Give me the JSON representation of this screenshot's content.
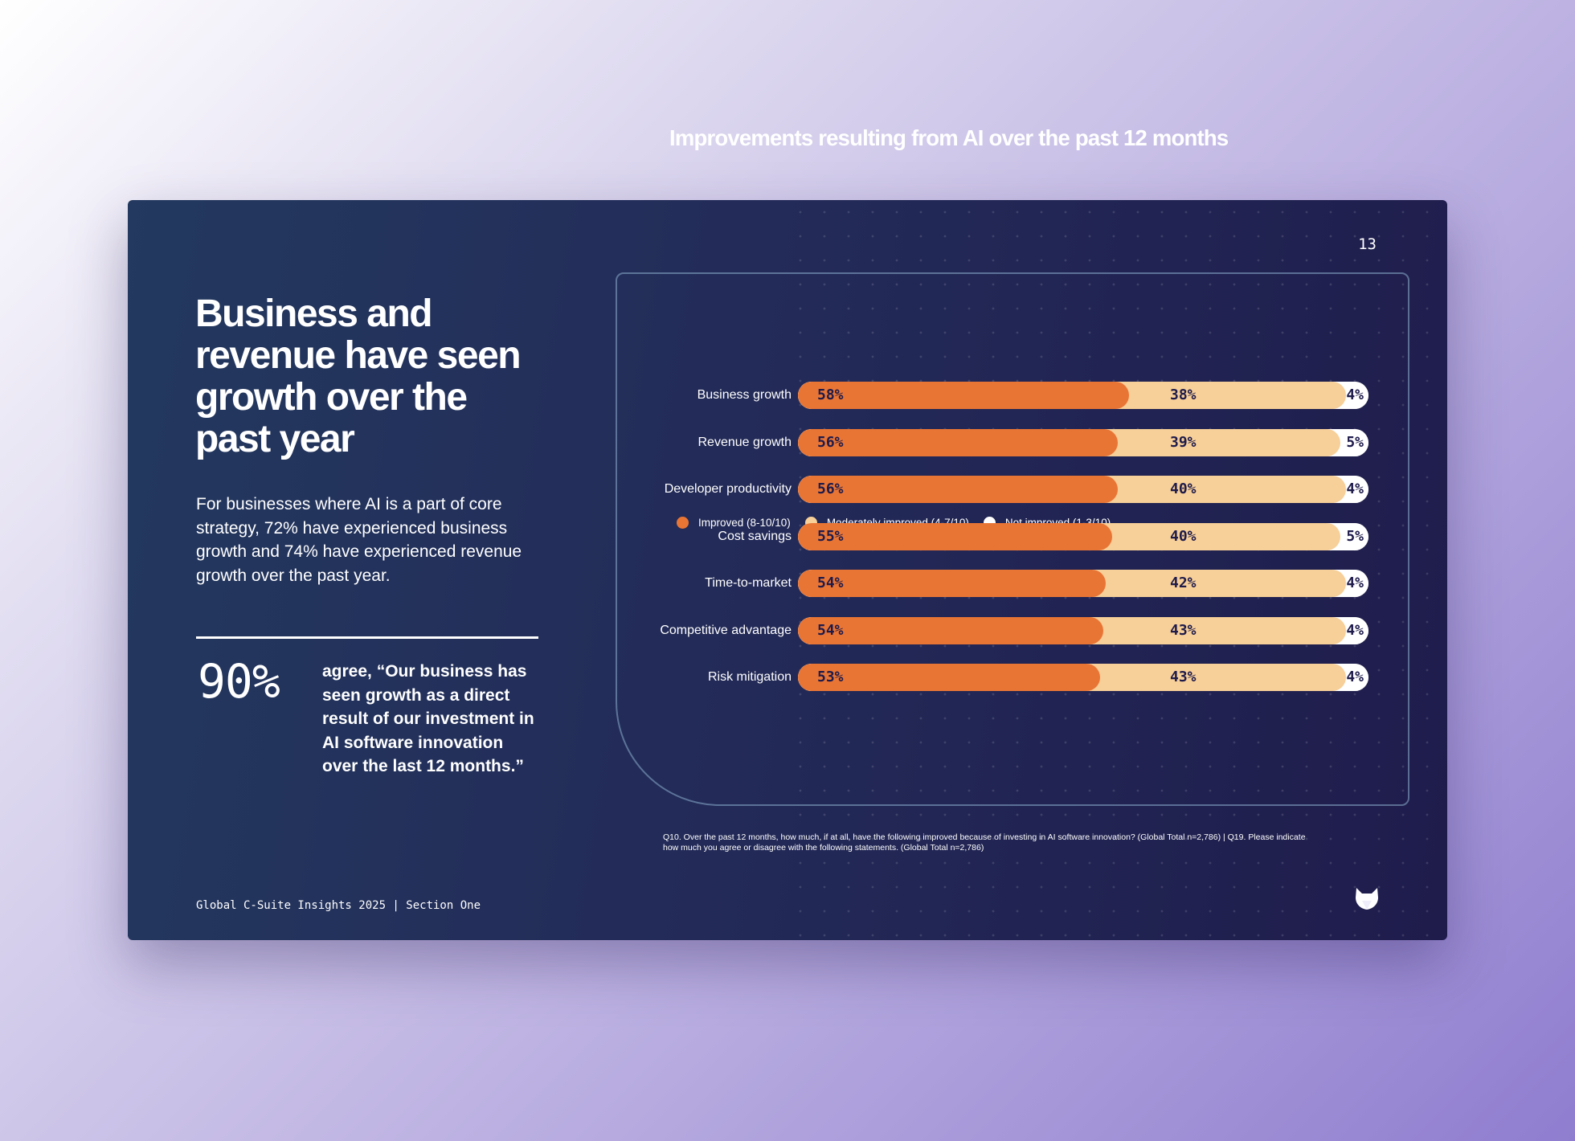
{
  "page_number": "13",
  "headline": "Business and revenue have seen growth over the past year",
  "body": "For businesses where AI is a part of core strategy, 72% have experienced business growth and 74% have experienced revenue growth over the past year.",
  "stat": {
    "value": "90%",
    "quote": "agree, “Our business has seen growth as a direct result of our investment in AI software innovation over the last 12 months.”"
  },
  "footer_label": "Global C-Suite Insights 2025 | Section One",
  "footnote": "Q10. Over the past 12 months, how much, if at all, have the following improved because of investing in AI software innovation? (Global Total n=2,786) | Q19. Please indicate how much you agree or disagree with the following statements. (Global Total n=2,786)",
  "logo_icon": "fox-logo-icon",
  "colors": {
    "improved": "#e97535",
    "moderately": "#f7cf98",
    "not_improved": "#ffffff"
  },
  "chart_data": {
    "type": "bar",
    "orientation": "horizontal",
    "stacked": true,
    "title": "Improvements resulting from AI over the past 12 months",
    "categories": [
      "Business growth",
      "Revenue growth",
      "Developer productivity",
      "Cost savings",
      "Time-to-market",
      "Competitive advantage",
      "Risk mitigation"
    ],
    "series": [
      {
        "name": "Improved (8-10/10)",
        "values": [
          58,
          56,
          56,
          55,
          54,
          54,
          53
        ]
      },
      {
        "name": "Moderately improved (4-7/10)",
        "values": [
          38,
          39,
          40,
          40,
          42,
          43,
          43
        ]
      },
      {
        "name": "Not improved (1-3/10)",
        "values": [
          4,
          5,
          4,
          5,
          4,
          4,
          4
        ]
      }
    ],
    "value_suffix": "%",
    "legend_position": "bottom"
  }
}
